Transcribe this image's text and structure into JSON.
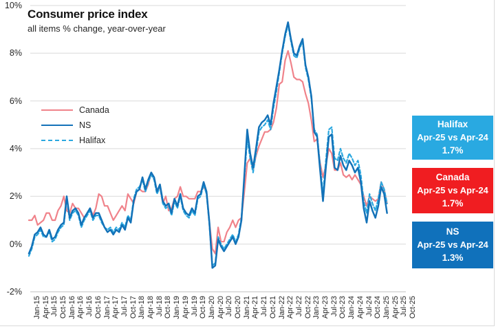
{
  "title": "Consumer price index",
  "subtitle": "all items % change, year-over-year",
  "colors": {
    "canada_line": "#F0828A",
    "ns_line": "#1372B8",
    "halifax_line": "#2AA7DF",
    "gridline": "#D9D9D9",
    "axis_line": "#BFBFBF",
    "tick_text": "#262626",
    "box_halifax_bg": "#29A9E1",
    "box_canada_bg": "#F01D21",
    "box_ns_bg": "#1071BB",
    "box_text": "#FFFFFF"
  },
  "chart_data": {
    "type": "line",
    "title": "Consumer price index",
    "subtitle": "all items % change, year-over-year",
    "x_unit": "monthly, Jan-2015 to Apr-2025",
    "x_axis_end": "Oct-25",
    "ylim": [
      -2,
      10
    ],
    "y_tick_step": 2,
    "grid": "horizontal-only",
    "legend_position": "inside-upper-left",
    "y_tick_labels": [
      "10%",
      "8%",
      "6%",
      "4%",
      "2%",
      "0%",
      "-2%"
    ],
    "x_tick_labels": [
      "Jan-15",
      "Apr-15",
      "Jul-15",
      "Oct-15",
      "Jan-16",
      "Apr-16",
      "Jul-16",
      "Oct-16",
      "Jan-17",
      "Apr-17",
      "Jul-17",
      "Oct-17",
      "Jan-18",
      "Apr-18",
      "Jul-18",
      "Oct-18",
      "Jan-19",
      "Apr-19",
      "Jul-19",
      "Oct-19",
      "Jan-20",
      "Apr-20",
      "Jul-20",
      "Oct-20",
      "Jan-21",
      "Apr-21",
      "Jul-21",
      "Oct-21",
      "Jan-22",
      "Apr-22",
      "Jul-22",
      "Oct-22",
      "Jan-23",
      "Apr-23",
      "Jul-23",
      "Oct-23",
      "Jan-24",
      "Apr-24",
      "Jul-24",
      "Oct-24",
      "Jan-25",
      "Apr-25",
      "Jul-25",
      "Oct-25"
    ],
    "months_per_tick": 3,
    "axis_months_total": 129,
    "series": [
      {
        "name": "Canada",
        "color": "#F0828A",
        "dash": "solid",
        "width": 2.2,
        "values": [
          1.0,
          1.0,
          1.2,
          0.8,
          0.9,
          1.0,
          1.3,
          1.3,
          1.0,
          1.0,
          1.4,
          1.6,
          2.0,
          1.4,
          1.3,
          1.7,
          1.5,
          1.5,
          1.3,
          1.1,
          1.3,
          1.5,
          1.2,
          1.5,
          2.1,
          2.0,
          1.6,
          1.6,
          1.3,
          1.0,
          1.2,
          1.4,
          1.6,
          1.4,
          2.1,
          1.9,
          1.7,
          2.2,
          2.3,
          2.2,
          2.2,
          2.5,
          3.0,
          2.8,
          2.2,
          2.4,
          1.7,
          2.0,
          1.4,
          1.5,
          1.9,
          2.0,
          2.4,
          2.0,
          2.0,
          1.9,
          1.9,
          1.9,
          2.2,
          2.2,
          2.4,
          2.2,
          0.9,
          -0.2,
          -0.4,
          0.7,
          0.1,
          0.1,
          0.5,
          0.7,
          1.0,
          0.7,
          1.0,
          1.1,
          2.2,
          3.4,
          3.6,
          3.1,
          3.7,
          4.1,
          4.4,
          4.7,
          4.7,
          4.8,
          5.1,
          5.7,
          6.7,
          6.8,
          7.7,
          8.1,
          7.6,
          7.0,
          6.9,
          6.9,
          6.8,
          6.3,
          5.9,
          5.2,
          4.3,
          4.4,
          3.4,
          2.8,
          3.3,
          4.0,
          3.8,
          3.1,
          3.1,
          3.4,
          2.9,
          2.8,
          2.9,
          2.7,
          2.9,
          2.7,
          2.5,
          2.0,
          1.6,
          2.0,
          1.9,
          1.8,
          1.9,
          2.6,
          2.3,
          1.7
        ]
      },
      {
        "name": "Halifax",
        "color": "#2AA7DF",
        "dash": "dashed",
        "width": 2.2,
        "values": [
          -0.5,
          -0.2,
          0.3,
          0.4,
          0.6,
          0.3,
          0.3,
          0.5,
          0.1,
          0.2,
          0.5,
          0.7,
          0.8,
          1.9,
          1.0,
          1.3,
          1.4,
          1.2,
          0.7,
          1.0,
          1.2,
          1.4,
          1.0,
          1.2,
          1.2,
          0.9,
          0.7,
          0.6,
          0.7,
          0.5,
          0.7,
          0.6,
          0.9,
          0.7,
          1.2,
          1.0,
          1.9,
          2.3,
          2.4,
          2.7,
          2.2,
          2.6,
          2.9,
          2.7,
          2.1,
          2.4,
          1.7,
          1.5,
          1.6,
          1.2,
          1.8,
          1.5,
          2.0,
          1.4,
          1.2,
          1.1,
          1.4,
          1.2,
          1.9,
          2.0,
          2.5,
          2.1,
          0.8,
          -0.9,
          -0.8,
          0.3,
          0.0,
          -0.2,
          0.0,
          0.2,
          0.4,
          0.1,
          0.4,
          1.1,
          2.8,
          4.4,
          3.6,
          3.0,
          3.8,
          4.7,
          4.9,
          5.0,
          5.2,
          4.8,
          5.7,
          6.4,
          7.2,
          8.0,
          8.7,
          9.2,
          8.5,
          7.9,
          7.8,
          8.2,
          8.5,
          7.4,
          6.9,
          6.1,
          4.8,
          4.6,
          3.3,
          2.1,
          3.5,
          4.8,
          4.9,
          3.6,
          3.5,
          4.0,
          3.6,
          3.4,
          3.8,
          3.6,
          3.3,
          3.5,
          2.9,
          1.8,
          1.3,
          2.1,
          1.7,
          1.4,
          1.9,
          2.6,
          2.3,
          1.7
        ]
      },
      {
        "name": "NS",
        "color": "#1372B8",
        "dash": "solid",
        "width": 2.5,
        "values": [
          -0.4,
          -0.1,
          0.4,
          0.5,
          0.7,
          0.4,
          0.3,
          0.6,
          0.2,
          0.3,
          0.6,
          0.8,
          0.9,
          2.0,
          1.1,
          1.4,
          1.5,
          1.3,
          0.8,
          1.1,
          1.3,
          1.5,
          1.1,
          1.3,
          1.3,
          1.0,
          0.7,
          0.5,
          0.6,
          0.4,
          0.6,
          0.5,
          0.8,
          0.6,
          1.1,
          0.9,
          1.8,
          2.2,
          2.3,
          2.8,
          2.3,
          2.7,
          3.0,
          2.8,
          2.2,
          2.5,
          1.8,
          1.6,
          1.7,
          1.3,
          1.9,
          1.6,
          2.1,
          1.5,
          1.3,
          1.2,
          1.5,
          1.3,
          2.0,
          2.1,
          2.6,
          2.2,
          0.9,
          -1.0,
          -0.9,
          0.2,
          -0.1,
          -0.3,
          -0.1,
          0.1,
          0.3,
          0.0,
          0.3,
          1.0,
          2.9,
          4.8,
          3.8,
          3.2,
          4.0,
          4.9,
          5.1,
          5.2,
          5.4,
          5.0,
          5.9,
          6.6,
          7.3,
          8.1,
          8.8,
          9.3,
          8.6,
          8.0,
          7.9,
          8.3,
          8.6,
          7.5,
          7.0,
          6.2,
          4.7,
          4.5,
          3.1,
          1.8,
          3.2,
          4.5,
          4.6,
          3.2,
          3.1,
          3.7,
          3.3,
          3.1,
          3.5,
          3.3,
          3.0,
          3.2,
          2.6,
          1.5,
          0.9,
          1.8,
          1.4,
          1.1,
          1.6,
          2.4,
          2.1,
          1.3
        ]
      }
    ],
    "legend_order": [
      "Canada",
      "NS",
      "Halifax"
    ]
  },
  "side_panels": [
    {
      "id": "halifax",
      "title": "Halifax",
      "comparison": "Apr-25 vs Apr-24",
      "value": "1.7%",
      "bg": "#29A9E1"
    },
    {
      "id": "canada",
      "title": "Canada",
      "comparison": "Apr-25 vs Apr-24",
      "value": "1.7%",
      "bg": "#F01D21"
    },
    {
      "id": "ns",
      "title": "NS",
      "comparison": "Apr-25 vs Apr-24",
      "value": "1.3%",
      "bg": "#1071BB"
    }
  ]
}
